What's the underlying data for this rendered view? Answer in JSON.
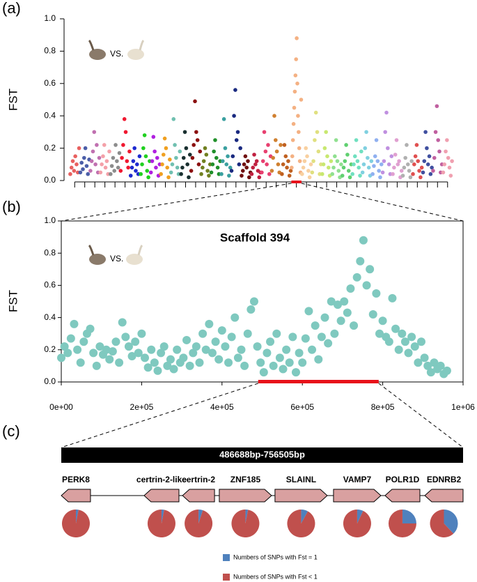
{
  "chart_data": [
    {
      "type": "manhattan",
      "panel_label": "(a)",
      "ylabel": "FST",
      "annotation": "VS.",
      "ylim": [
        0,
        1
      ],
      "yticks": [
        {
          "value": 0,
          "label": "0.0"
        },
        {
          "value": 0.2,
          "label": "0.2"
        },
        {
          "value": 0.4,
          "label": "0.4"
        },
        {
          "value": 0.6,
          "label": "0.6"
        },
        {
          "value": 0.8,
          "label": "0.8"
        },
        {
          "value": 1,
          "label": "1.0"
        }
      ],
      "highlight_group": 22,
      "groups": [
        {
          "color": "#e8605f",
          "values": [
            0.04,
            0.08,
            0.12,
            0.06,
            0.15,
            0.1,
            0.05,
            0.2
          ]
        },
        {
          "color": "#4b5ea8",
          "values": [
            0.05,
            0.11,
            0.07,
            0.14,
            0.2,
            0.09,
            0.04,
            0.13
          ]
        },
        {
          "color": "#c070b0",
          "values": [
            0.06,
            0.12,
            0.18,
            0.3,
            0.1,
            0.22,
            0.05,
            0.14
          ]
        },
        {
          "color": "#f4a0a8",
          "values": [
            0.05,
            0.1,
            0.15,
            0.22,
            0.08,
            0.12,
            0.04,
            0.18
          ]
        },
        {
          "color": "#8c8c8c",
          "values": [
            0.04,
            0.09,
            0.14,
            0.06,
            0.22,
            0.12,
            0.08,
            0.17
          ]
        },
        {
          "color": "#f01830",
          "values": [
            0.06,
            0.14,
            0.22,
            0.38,
            0.3,
            0.12,
            0.08,
            0.18
          ]
        },
        {
          "color": "#1e2ad0",
          "values": [
            0.03,
            0.08,
            0.12,
            0.2,
            0.06,
            0.1,
            0.04,
            0.15
          ]
        },
        {
          "color": "#20d020",
          "values": [
            0.04,
            0.1,
            0.2,
            0.28,
            0.15,
            0.06,
            0.02,
            0.12
          ]
        },
        {
          "color": "#b020e0",
          "values": [
            0.05,
            0.12,
            0.27,
            0.18,
            0.08,
            0.14,
            0.03,
            0.1
          ]
        },
        {
          "color": "#f0a020",
          "values": [
            0.04,
            0.1,
            0.16,
            0.26,
            0.2,
            0.08,
            0.02,
            0.13
          ]
        },
        {
          "color": "#70c0b0",
          "values": [
            0.05,
            0.1,
            0.38,
            0.22,
            0.14,
            0.08,
            0.04,
            0.18
          ]
        },
        {
          "color": "#1a3030",
          "values": [
            0.04,
            0.08,
            0.14,
            0.3,
            0.2,
            0.1,
            0.02,
            0.16
          ]
        },
        {
          "color": "#8b1010",
          "values": [
            0.06,
            0.14,
            0.22,
            0.49,
            0.3,
            0.25,
            0.1,
            0.18
          ]
        },
        {
          "color": "#708020",
          "values": [
            0.04,
            0.08,
            0.12,
            0.2,
            0.16,
            0.06,
            0.03,
            0.1
          ]
        },
        {
          "color": "#20902a",
          "values": [
            0.05,
            0.1,
            0.18,
            0.25,
            0.14,
            0.08,
            0.04,
            0.12
          ]
        },
        {
          "color": "#3aa0a0",
          "values": [
            0.04,
            0.12,
            0.38,
            0.2,
            0.1,
            0.15,
            0.03,
            0.08
          ]
        },
        {
          "color": "#1a2a80",
          "values": [
            0.06,
            0.15,
            0.4,
            0.56,
            0.25,
            0.3,
            0.1,
            0.2
          ]
        },
        {
          "color": "#701010",
          "values": [
            0.03,
            0.06,
            0.1,
            0.15,
            0.08,
            0.12,
            0.02,
            0.05
          ]
        },
        {
          "color": "#c02040",
          "values": [
            0.04,
            0.08,
            0.16,
            0.1,
            0.12,
            0.06,
            0.02,
            0.05
          ]
        },
        {
          "color": "#e84070",
          "values": [
            0.05,
            0.12,
            0.3,
            0.18,
            0.1,
            0.22,
            0.04,
            0.15
          ]
        },
        {
          "color": "#d08030",
          "values": [
            0.06,
            0.14,
            0.4,
            0.25,
            0.18,
            0.1,
            0.05,
            0.22
          ]
        },
        {
          "color": "#c06020",
          "values": [
            0.04,
            0.1,
            0.22,
            0.15,
            0.08,
            0.12,
            0.03,
            0.06
          ]
        },
        {
          "color": "#f4b183",
          "values": [
            0.08,
            0.15,
            0.25,
            0.35,
            0.45,
            0.55,
            0.65,
            0.75,
            0.88,
            0.6,
            0.4,
            0.3,
            0.2,
            0.12,
            0.05,
            0.5
          ]
        },
        {
          "color": "#f8d0a0",
          "values": [
            0.04,
            0.08,
            0.12,
            0.2,
            0.15,
            0.06,
            0.02,
            0.1
          ]
        },
        {
          "color": "#e0e080",
          "values": [
            0.05,
            0.12,
            0.25,
            0.42,
            0.3,
            0.18,
            0.04,
            0.1
          ]
        },
        {
          "color": "#c8e870",
          "values": [
            0.04,
            0.1,
            0.2,
            0.3,
            0.15,
            0.08,
            0.03,
            0.12
          ]
        },
        {
          "color": "#90e090",
          "values": [
            0.04,
            0.08,
            0.15,
            0.25,
            0.12,
            0.06,
            0.02,
            0.1
          ]
        },
        {
          "color": "#60d070",
          "values": [
            0.03,
            0.08,
            0.12,
            0.22,
            0.16,
            0.06,
            0.02,
            0.1
          ]
        },
        {
          "color": "#70e0c0",
          "values": [
            0.04,
            0.1,
            0.15,
            0.25,
            0.12,
            0.08,
            0.03,
            0.18
          ]
        },
        {
          "color": "#80d0e0",
          "values": [
            0.05,
            0.1,
            0.2,
            0.3,
            0.14,
            0.08,
            0.03,
            0.12
          ]
        },
        {
          "color": "#90b0f0",
          "values": [
            0.04,
            0.09,
            0.15,
            0.25,
            0.12,
            0.06,
            0.02,
            0.1
          ]
        },
        {
          "color": "#c090e0",
          "values": [
            0.05,
            0.12,
            0.3,
            0.42,
            0.2,
            0.1,
            0.04,
            0.15
          ]
        },
        {
          "color": "#e0a0d0",
          "values": [
            0.04,
            0.08,
            0.16,
            0.25,
            0.1,
            0.12,
            0.02,
            0.06
          ]
        },
        {
          "color": "#b0b0b0",
          "values": [
            0.03,
            0.08,
            0.14,
            0.22,
            0.1,
            0.06,
            0.02,
            0.12
          ]
        },
        {
          "color": "#e05050",
          "values": [
            0.04,
            0.1,
            0.15,
            0.22,
            0.12,
            0.06,
            0.02,
            0.08
          ]
        },
        {
          "color": "#4050a0",
          "values": [
            0.05,
            0.12,
            0.3,
            0.2,
            0.1,
            0.15,
            0.04,
            0.08
          ]
        },
        {
          "color": "#c060a0",
          "values": [
            0.06,
            0.14,
            0.3,
            0.46,
            0.25,
            0.18,
            0.05,
            0.1
          ]
        },
        {
          "color": "#f0a0b0",
          "values": [
            0.05,
            0.1,
            0.18,
            0.25,
            0.14,
            0.08,
            0.03,
            0.12
          ]
        }
      ]
    },
    {
      "type": "scatter",
      "panel_label": "(b)",
      "title": "Scaffold 394",
      "ylabel": "FST",
      "annotation": "VS.",
      "color": "#7fc9bf",
      "highlight_color": "#e8101a",
      "xlim": [
        0,
        1000000
      ],
      "ylim": [
        0,
        1
      ],
      "xticks": [
        {
          "value": 0,
          "label": "0e+00"
        },
        {
          "value": 200000,
          "label": "2e+05"
        },
        {
          "value": 400000,
          "label": "4e+05"
        },
        {
          "value": 600000,
          "label": "6e+05"
        },
        {
          "value": 800000,
          "label": "8e+05"
        },
        {
          "value": 1000000,
          "label": "1e+06"
        }
      ],
      "yticks": [
        {
          "value": 0,
          "label": "0.0"
        },
        {
          "value": 0.2,
          "label": "0.2"
        },
        {
          "value": 0.4,
          "label": "0.4"
        },
        {
          "value": 0.6,
          "label": "0.6"
        },
        {
          "value": 0.8,
          "label": "0.8"
        },
        {
          "value": 1,
          "label": "1.0"
        }
      ],
      "highlight": [
        490000,
        790000
      ],
      "x": [
        0,
        8000,
        16000,
        24000,
        32000,
        40000,
        48000,
        56000,
        64000,
        72000,
        80000,
        88000,
        96000,
        104000,
        112000,
        120000,
        128000,
        136000,
        144000,
        152000,
        160000,
        168000,
        176000,
        184000,
        192000,
        200000,
        208000,
        216000,
        224000,
        232000,
        240000,
        248000,
        256000,
        264000,
        272000,
        280000,
        288000,
        296000,
        304000,
        312000,
        320000,
        328000,
        336000,
        344000,
        352000,
        360000,
        368000,
        376000,
        384000,
        392000,
        400000,
        408000,
        416000,
        424000,
        432000,
        440000,
        448000,
        456000,
        464000,
        472000,
        480000,
        488000,
        496000,
        504000,
        512000,
        520000,
        528000,
        536000,
        544000,
        552000,
        560000,
        568000,
        576000,
        584000,
        592000,
        600000,
        608000,
        616000,
        624000,
        632000,
        640000,
        648000,
        656000,
        664000,
        672000,
        680000,
        688000,
        696000,
        704000,
        712000,
        720000,
        728000,
        736000,
        744000,
        752000,
        760000,
        768000,
        776000,
        784000,
        792000,
        800000,
        808000,
        816000,
        824000,
        832000,
        840000,
        848000,
        856000,
        864000,
        872000,
        880000,
        888000,
        896000,
        904000,
        912000,
        920000,
        928000,
        936000,
        944000,
        952000,
        960000
      ],
      "values": [
        0.15,
        0.22,
        0.18,
        0.27,
        0.36,
        0.2,
        0.12,
        0.25,
        0.3,
        0.33,
        0.18,
        0.1,
        0.22,
        0.17,
        0.2,
        0.14,
        0.19,
        0.25,
        0.12,
        0.37,
        0.28,
        0.22,
        0.16,
        0.25,
        0.18,
        0.3,
        0.15,
        0.09,
        0.2,
        0.12,
        0.07,
        0.18,
        0.22,
        0.1,
        0.14,
        0.08,
        0.2,
        0.12,
        0.15,
        0.26,
        0.1,
        0.18,
        0.22,
        0.12,
        0.3,
        0.2,
        0.36,
        0.18,
        0.25,
        0.14,
        0.32,
        0.22,
        0.12,
        0.28,
        0.4,
        0.15,
        0.2,
        0.1,
        0.3,
        0.45,
        0.5,
        0.22,
        0.12,
        0.06,
        0.18,
        0.25,
        0.1,
        0.3,
        0.15,
        0.08,
        0.2,
        0.12,
        0.28,
        0.06,
        0.18,
        0.12,
        0.27,
        0.44,
        0.2,
        0.35,
        0.14,
        0.28,
        0.4,
        0.24,
        0.5,
        0.3,
        0.48,
        0.38,
        0.5,
        0.43,
        0.58,
        0.35,
        0.65,
        0.75,
        0.88,
        0.6,
        0.7,
        0.42,
        0.55,
        0.3,
        0.38,
        0.28,
        0.25,
        0.52,
        0.33,
        0.2,
        0.3,
        0.25,
        0.18,
        0.28,
        0.22,
        0.12,
        0.25,
        0.15,
        0.1,
        0.06,
        0.12,
        0.08,
        0.1,
        0.05,
        0.07
      ]
    },
    {
      "type": "gene-pies",
      "panel_label": "(c)",
      "title": "486688bp-756505bp",
      "xlim": [
        486688,
        756505
      ],
      "gene_color": "#d9a0a0",
      "categories": [
        "PERK8",
        "certrin-2-like",
        "certrin-2",
        "ZNF185",
        "SLAINL",
        "VAMP7",
        "POLR1D",
        "EDNRB2"
      ],
      "genes": [
        {
          "start": 486700,
          "end": 506300,
          "strand": "-"
        },
        {
          "start": 542300,
          "end": 565700,
          "strand": "-"
        },
        {
          "start": 568100,
          "end": 589600,
          "strand": "-"
        },
        {
          "start": 592800,
          "end": 627900,
          "strand": "+"
        },
        {
          "start": 630200,
          "end": 665300,
          "strand": "+"
        },
        {
          "start": 669500,
          "end": 701300,
          "strand": "+"
        },
        {
          "start": 704100,
          "end": 727500,
          "strand": "-"
        },
        {
          "start": 730800,
          "end": 756500,
          "strand": "-"
        }
      ],
      "series": [
        {
          "name": "Numbers of SNPs with Fst = 1",
          "color": "#4f81bd",
          "values": [
            3,
            3,
            5,
            3,
            8,
            7,
            25,
            38
          ]
        },
        {
          "name": "Numbers of SNPs with Fst < 1",
          "color": "#c0504d",
          "values": [
            97,
            97,
            95,
            97,
            92,
            93,
            75,
            62
          ]
        }
      ]
    }
  ]
}
